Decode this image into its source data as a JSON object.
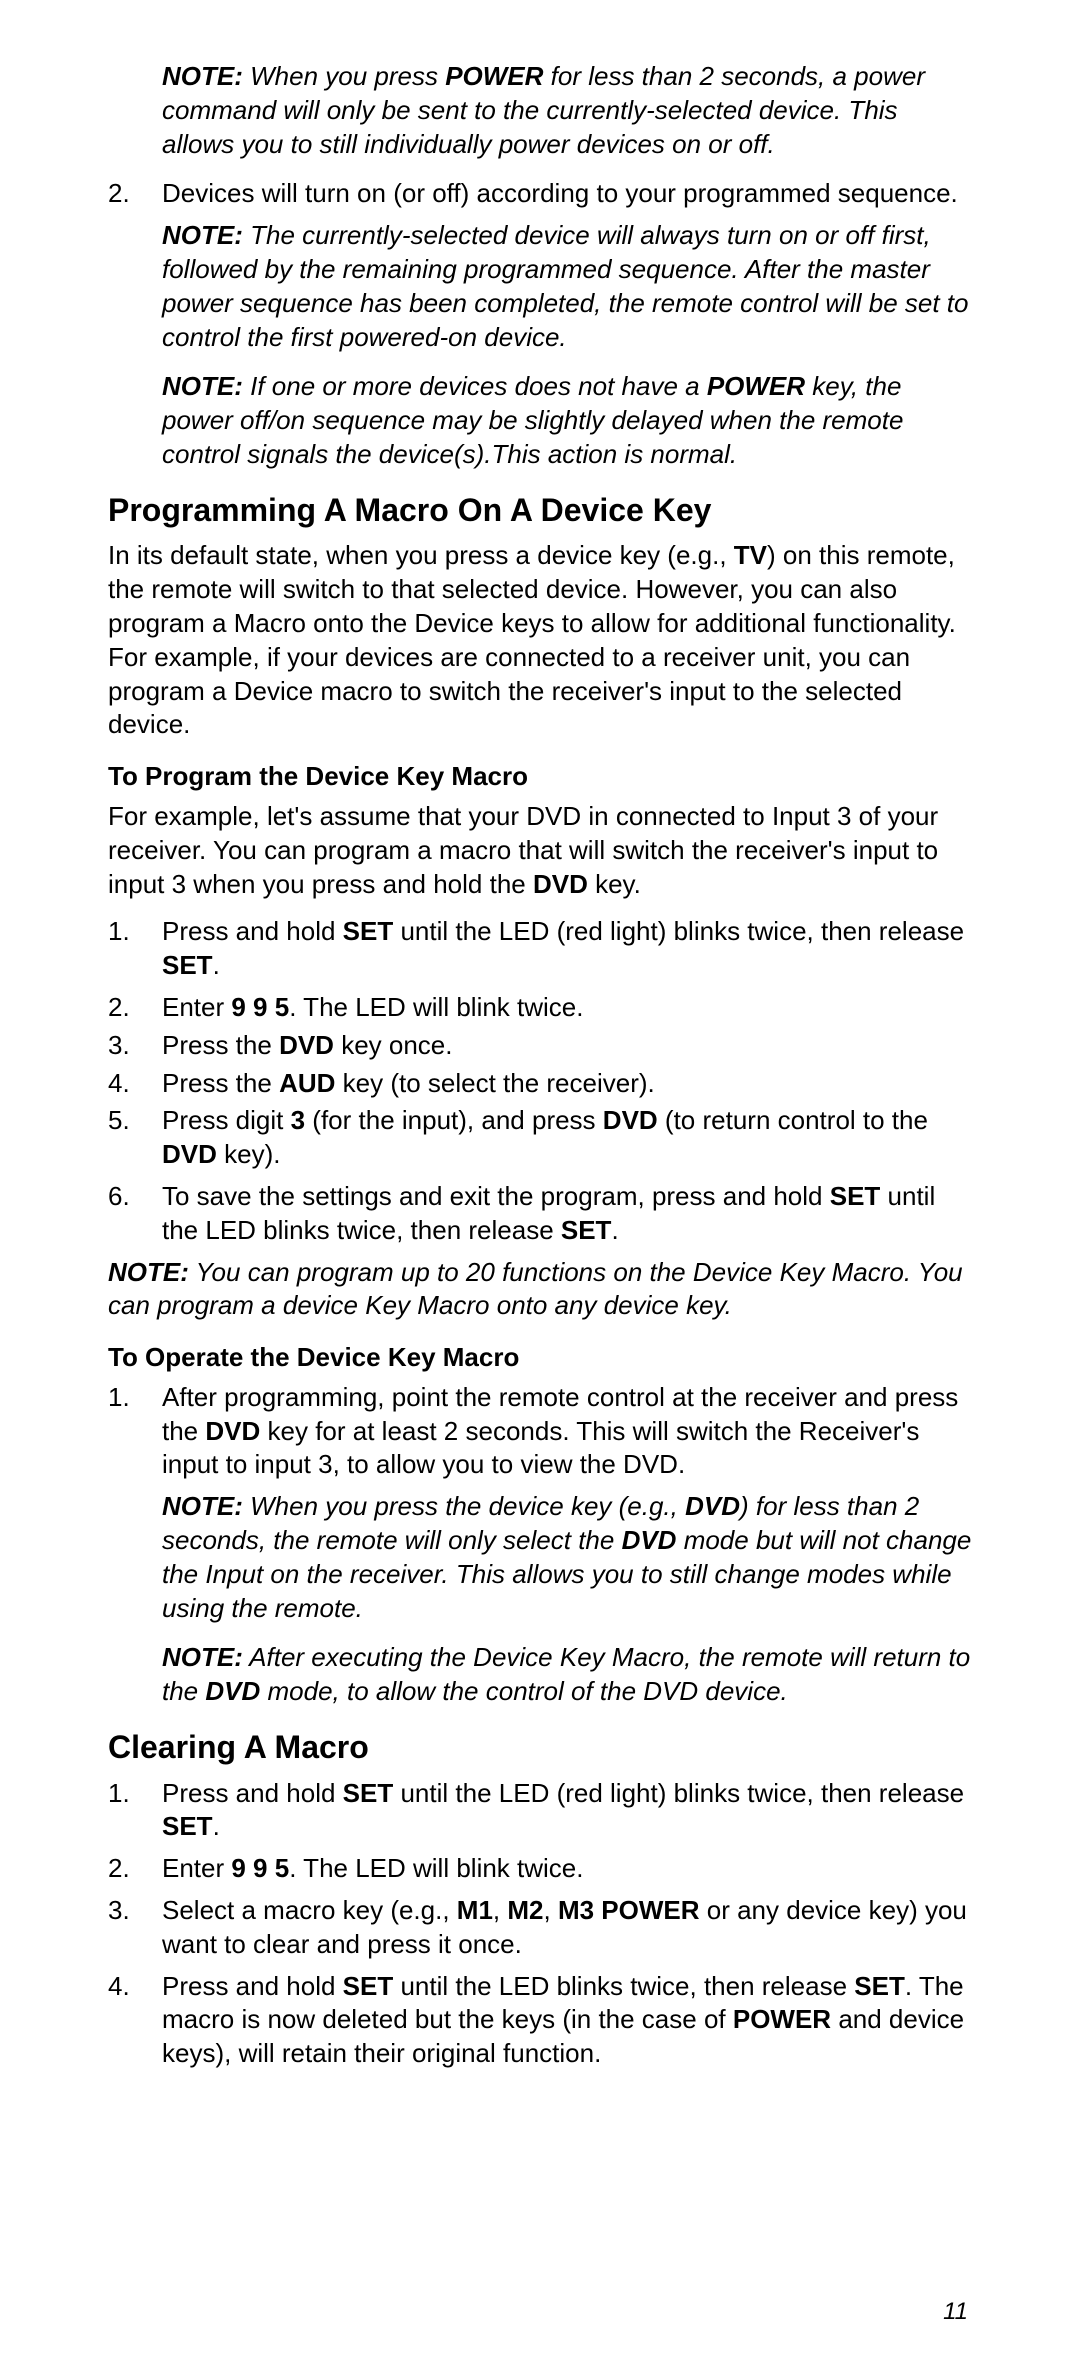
{
  "note1": {
    "lead": "NOTE:",
    "body": " When you press ",
    "b1": "POWER",
    "body2": " for less than 2 seconds, a power command will only be sent to the currently-selected device. This allows you to still individually power devices on or off."
  },
  "item2": {
    "num": "2.",
    "txt": "Devices will turn on (or off) according to your programmed sequence."
  },
  "note2": {
    "lead": "NOTE:",
    "body": " The currently-selected device will always turn on or off first, followed by the remaining programmed sequence. After the master power sequence has been completed, the remote control will be set to control the first powered-on device."
  },
  "note3": {
    "lead": "NOTE:",
    "body": " If one or more devices does not have a ",
    "b1": "POWER",
    "body2": " key, the power off/on sequence may be slightly delayed when the remote control signals the device(s).This action is normal."
  },
  "h1": "Programming A Macro On A Device Key",
  "p1a": "In its default state, when you press a device key (e.g., ",
  "p1b": "TV",
  "p1c": ") on this remote, the remote will switch to that selected device. However, you can also program a Macro onto the Device keys to allow for additional functionality. For example, if your devices are connected to a receiver unit, you can program a Device macro to switch the receiver's input to the selected device.",
  "sh1": "To Program the Device Key Macro",
  "p2a": "For example, let's assume that your DVD in connected to Input 3 of your receiver. You can program a macro that will switch the receiver's input to input 3 when you press and hold the ",
  "p2b": "DVD",
  "p2c": " key.",
  "s1": {
    "num": "1.",
    "a": "Press and hold ",
    "b1": "SET",
    "c": " until the LED (red light) blinks twice, then release ",
    "b2": "SET",
    "d": "."
  },
  "s2": {
    "num": "2.",
    "a": "Enter ",
    "b1": "9 9 5",
    "c": ". The LED will blink twice."
  },
  "s3": {
    "num": "3.",
    "a": "Press the ",
    "b1": "DVD",
    "c": " key once."
  },
  "s4": {
    "num": "4.",
    "a": "Press the ",
    "b1": "AUD",
    "c": " key (to select the receiver)."
  },
  "s5": {
    "num": "5.",
    "a": "Press digit ",
    "b1": "3",
    "c": " (for the input), and press ",
    "b2": "DVD",
    "d": " (to return control to the ",
    "b3": "DVD",
    "e": " key)."
  },
  "s6": {
    "num": "6.",
    "a": "To save the settings and exit the program, press and hold ",
    "b1": "SET",
    "c": " until the LED blinks twice, then release ",
    "b2": "SET",
    "d": "."
  },
  "note4": {
    "lead": "NOTE:",
    "body": " You can program up to 20 functions on the Device Key Macro. You can program a device Key Macro onto any device key."
  },
  "sh2": "To Operate the Device Key Macro",
  "o1": {
    "num": "1.",
    "a": "After programming, point the remote control at the receiver and press the ",
    "b1": "DVD",
    "c": " key for at least 2 seconds. This will switch the Receiver's input to input 3, to allow you to view the DVD."
  },
  "note5": {
    "lead": "NOTE:",
    "a": " When you press the device key (e.g., ",
    "b1": "DVD",
    "c": ") for less than 2 seconds, the remote will only select the ",
    "b2": "DVD",
    "d": " mode but will not change the Input on the receiver. This allows you to still change modes while using the remote."
  },
  "note6": {
    "lead": "NOTE:",
    "a": " After executing the Device Key Macro, the remote will return to the ",
    "b1": "DVD",
    "c": " mode, to allow the control of the DVD device."
  },
  "h2": "Clearing A Macro",
  "c1": {
    "num": "1.",
    "a": "Press and hold ",
    "b1": "SET",
    "c": " until the LED (red light) blinks twice, then release ",
    "b2": "SET",
    "d": "."
  },
  "c2": {
    "num": "2.",
    "a": "Enter ",
    "b1": "9 9 5",
    "c": ". The LED will blink twice."
  },
  "c3": {
    "num": "3.",
    "a": "Select a macro key (e.g., ",
    "b1": "M1",
    "c": ", ",
    "b2": "M2",
    "d": ", ",
    "b3": "M3 POWER",
    "e": " or any device key) you want to clear and press it once."
  },
  "c4": {
    "num": "4.",
    "a": "Press and hold ",
    "b1": "SET",
    "c": " until the LED blinks twice, then release ",
    "b2": "SET",
    "d": ". The macro is now deleted but the keys (in the case of ",
    "b3": "POWER",
    "e": " and device keys), will retain their original function."
  },
  "pagenum": "11"
}
